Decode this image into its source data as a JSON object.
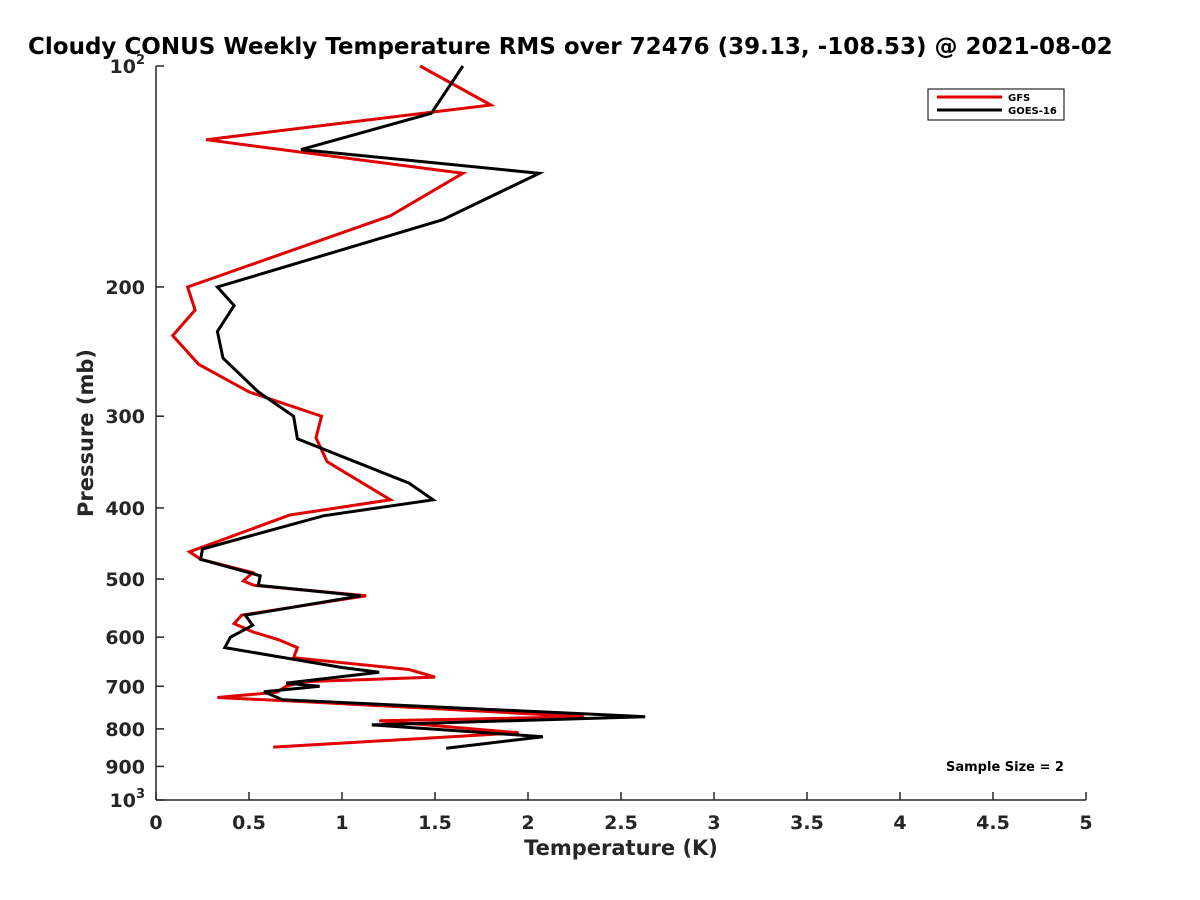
{
  "chart_data": {
    "type": "line",
    "title": "Cloudy CONUS Weekly Temperature RMS over 72476 (39.13, -108.53) @ 2021-08-02",
    "xlabel": "Temperature (K)",
    "ylabel": "Pressure (mb)",
    "xlim": [
      0,
      5
    ],
    "ylim": [
      100,
      1000
    ],
    "y_scale": "log",
    "y_reversed": true,
    "grid": false,
    "legend_position": "top-right",
    "x_ticks": [
      "0",
      "0.5",
      "1",
      "1.5",
      "2",
      "2.5",
      "3",
      "3.5",
      "4",
      "4.5",
      "5"
    ],
    "y_ticks": [
      {
        "value": 100,
        "base": "10",
        "exp": "2"
      },
      {
        "value": 200,
        "label": "200"
      },
      {
        "value": 300,
        "label": "300"
      },
      {
        "value": 400,
        "label": "400"
      },
      {
        "value": 500,
        "label": "500"
      },
      {
        "value": 600,
        "label": "600"
      },
      {
        "value": 700,
        "label": "700"
      },
      {
        "value": 800,
        "label": "800"
      },
      {
        "value": 900,
        "label": "900"
      },
      {
        "value": 1000,
        "base": "10",
        "exp": "3"
      }
    ],
    "annotation": "Sample Size = 2",
    "series": [
      {
        "name": "GFS",
        "color": "#e00000",
        "points": [
          [
            1.42,
            100
          ],
          [
            1.8,
            113
          ],
          [
            0.27,
            126
          ],
          [
            1.65,
            140
          ],
          [
            1.26,
            160
          ],
          [
            0.17,
            200
          ],
          [
            0.21,
            215
          ],
          [
            0.09,
            233
          ],
          [
            0.23,
            255
          ],
          [
            0.5,
            278
          ],
          [
            0.89,
            300
          ],
          [
            0.86,
            321
          ],
          [
            0.92,
            346
          ],
          [
            1.26,
            390
          ],
          [
            0.72,
            409
          ],
          [
            0.18,
            459
          ],
          [
            0.24,
            470
          ],
          [
            0.52,
            490
          ],
          [
            0.47,
            503
          ],
          [
            0.53,
            510
          ],
          [
            1.13,
            527
          ],
          [
            0.46,
            560
          ],
          [
            0.42,
            575
          ],
          [
            0.52,
            590
          ],
          [
            0.66,
            605
          ],
          [
            0.76,
            620
          ],
          [
            0.74,
            640
          ],
          [
            1.36,
            664
          ],
          [
            1.5,
            680
          ],
          [
            0.79,
            690
          ],
          [
            0.7,
            700
          ],
          [
            0.65,
            713
          ],
          [
            0.33,
            725
          ],
          [
            0.82,
            735
          ],
          [
            2.3,
            770
          ],
          [
            1.2,
            780
          ],
          [
            1.95,
            810
          ],
          [
            0.63,
            847
          ]
        ]
      },
      {
        "name": "GOES-16",
        "color": "#000000",
        "points": [
          [
            1.65,
            100
          ],
          [
            1.48,
            116
          ],
          [
            0.78,
            130
          ],
          [
            2.06,
            140
          ],
          [
            1.54,
            162
          ],
          [
            0.33,
            200
          ],
          [
            0.42,
            212
          ],
          [
            0.33,
            230
          ],
          [
            0.36,
            250
          ],
          [
            0.55,
            278
          ],
          [
            0.74,
            300
          ],
          [
            0.76,
            322
          ],
          [
            1.36,
            370
          ],
          [
            1.49,
            390
          ],
          [
            0.9,
            410
          ],
          [
            0.25,
            455
          ],
          [
            0.24,
            470
          ],
          [
            0.56,
            495
          ],
          [
            0.55,
            510
          ],
          [
            1.1,
            527
          ],
          [
            0.48,
            560
          ],
          [
            0.52,
            578
          ],
          [
            0.4,
            600
          ],
          [
            0.37,
            620
          ],
          [
            1.0,
            660
          ],
          [
            1.2,
            670
          ],
          [
            0.7,
            693
          ],
          [
            0.88,
            700
          ],
          [
            0.58,
            712
          ],
          [
            0.68,
            730
          ],
          [
            2.63,
            770
          ],
          [
            1.16,
            790
          ],
          [
            2.08,
            820
          ],
          [
            1.56,
            850
          ]
        ]
      }
    ]
  }
}
